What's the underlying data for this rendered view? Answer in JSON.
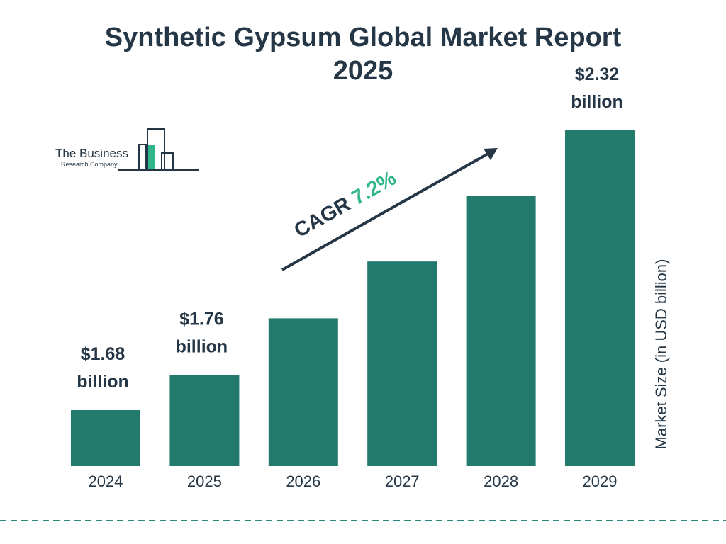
{
  "chart_data": {
    "type": "bar",
    "title": "Synthetic Gypsum Global Market Report 2025",
    "categories": [
      "2024",
      "2025",
      "2026",
      "2027",
      "2028",
      "2029"
    ],
    "values": [
      1.68,
      1.76,
      1.89,
      2.02,
      2.17,
      2.32
    ],
    "value_labels": [
      "$1.68 billion",
      "$1.76 billion",
      null,
      null,
      null,
      "$2.32 billion"
    ],
    "color": "#217a6b",
    "y_axis_label": "Market Size (in USD billion)",
    "cagr_label": "CAGR",
    "cagr_value": "7.2%",
    "logo": {
      "line1": "The Business",
      "line2": "Research Company"
    }
  }
}
